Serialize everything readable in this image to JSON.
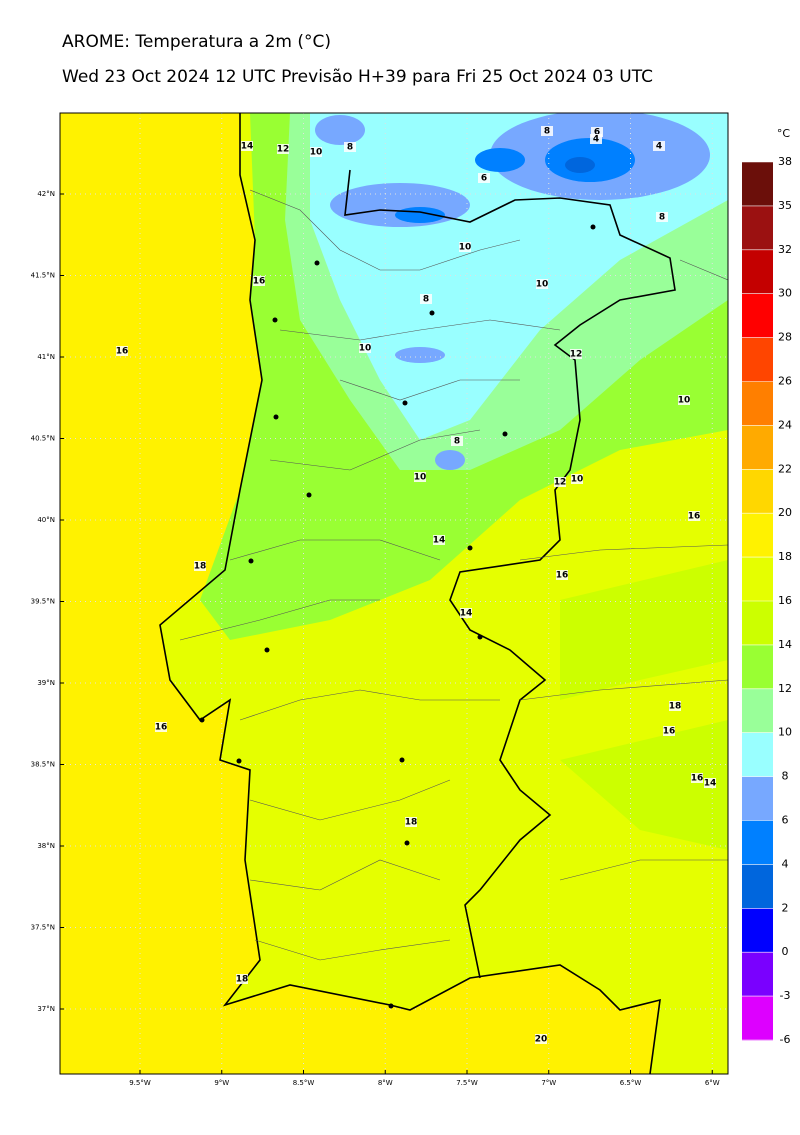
{
  "header": {
    "title": "AROME: Temperatura a 2m (°C)",
    "subtitle": "Wed 23 Oct 2024 12 UTC Previsão H+39 para Fri 25 Oct 2024 03 UTC"
  },
  "colorbar": {
    "unit": "°C",
    "ticks": [
      38,
      35,
      32,
      30,
      28,
      26,
      24,
      22,
      20,
      18,
      16,
      14,
      12,
      10,
      8,
      6,
      4,
      2,
      0,
      -3,
      -6
    ],
    "colors": [
      "#6b0f0a",
      "#9b1111",
      "#c40000",
      "#ff0000",
      "#ff4500",
      "#ff7f00",
      "#ffaa00",
      "#ffd700",
      "#fff200",
      "#e5ff00",
      "#ccff00",
      "#99ff33",
      "#99ff99",
      "#99ffff",
      "#77a8ff",
      "#0080ff",
      "#0066dd",
      "#0000ff",
      "#7a00ff",
      "#dd00ff"
    ]
  },
  "lat_labels": [
    {
      "value": 42,
      "label": "42°N"
    },
    {
      "value": 41.5,
      "label": "41.5°N"
    },
    {
      "value": 41,
      "label": "41°N"
    },
    {
      "value": 40.5,
      "label": "40.5°N"
    },
    {
      "value": 40,
      "label": "40°N"
    },
    {
      "value": 39.5,
      "label": "39.5°N"
    },
    {
      "value": 39,
      "label": "39°N"
    },
    {
      "value": 38.5,
      "label": "38.5°N"
    },
    {
      "value": 38,
      "label": "38°N"
    },
    {
      "value": 37.5,
      "label": "37.5°N"
    },
    {
      "value": 37,
      "label": "37°N"
    }
  ],
  "lon_labels": [
    {
      "value": -9.5,
      "label": "9.5°W"
    },
    {
      "value": -9,
      "label": "9°W"
    },
    {
      "value": -8.5,
      "label": "8.5°W"
    },
    {
      "value": -8,
      "label": "8°W"
    },
    {
      "value": -7.5,
      "label": "7.5°W"
    },
    {
      "value": -7,
      "label": "7°W"
    },
    {
      "value": -6.5,
      "label": "6.5°W"
    },
    {
      "value": -6,
      "label": "6°W"
    }
  ],
  "contour_labels": [
    "14",
    "12",
    "10",
    "8",
    "8",
    "6",
    "4",
    "4",
    "6",
    "8",
    "10",
    "16",
    "10",
    "8",
    "16",
    "10",
    "12",
    "10",
    "8",
    "10",
    "12",
    "10",
    "16",
    "14",
    "18",
    "16",
    "14",
    "18",
    "16",
    "16",
    "16",
    "14",
    "18",
    "18",
    "20"
  ]
}
